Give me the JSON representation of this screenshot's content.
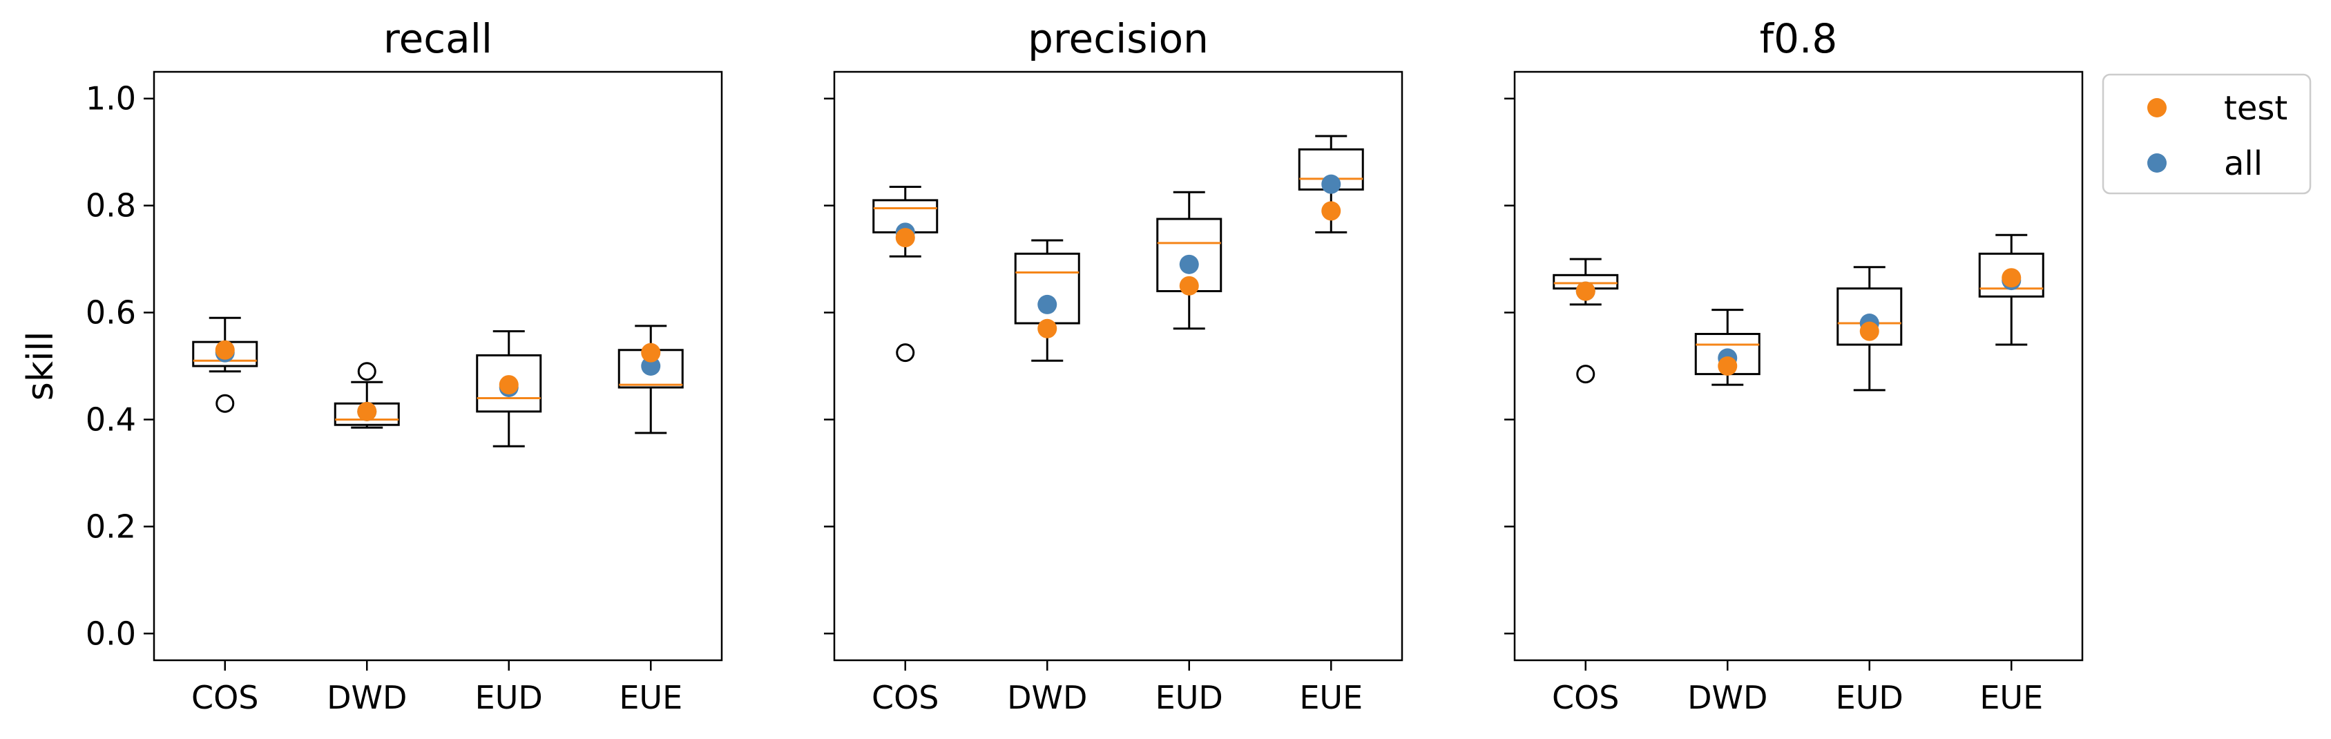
{
  "colors": {
    "test": "#f58518",
    "all": "#4a83b5",
    "median": "#f58518",
    "box": "#000000"
  },
  "chart_data": [
    {
      "type": "box",
      "title": "recall",
      "ylabel": "skill",
      "ylim": [
        -0.05,
        1.05
      ],
      "yticks": [
        "0.0",
        "0.2",
        "0.4",
        "0.6",
        "0.8",
        "1.0"
      ],
      "categories": [
        "COS",
        "DWD",
        "EUD",
        "EUE"
      ],
      "boxes": [
        {
          "whisker_low": 0.49,
          "q1": 0.5,
          "median": 0.51,
          "q3": 0.545,
          "whisker_high": 0.59,
          "fliers": [
            0.43
          ]
        },
        {
          "whisker_low": 0.385,
          "q1": 0.39,
          "median": 0.4,
          "q3": 0.43,
          "whisker_high": 0.47,
          "fliers": [
            0.49
          ]
        },
        {
          "whisker_low": 0.35,
          "q1": 0.415,
          "median": 0.44,
          "q3": 0.52,
          "whisker_high": 0.565,
          "fliers": []
        },
        {
          "whisker_low": 0.375,
          "q1": 0.46,
          "median": 0.465,
          "q3": 0.53,
          "whisker_high": 0.575,
          "fliers": []
        }
      ],
      "series": [
        {
          "name": "all",
          "values": [
            0.525,
            0.415,
            0.46,
            0.5
          ]
        },
        {
          "name": "test",
          "values": [
            0.53,
            0.415,
            0.465,
            0.525
          ]
        }
      ]
    },
    {
      "type": "box",
      "title": "precision",
      "ylim": [
        -0.05,
        1.05
      ],
      "categories": [
        "COS",
        "DWD",
        "EUD",
        "EUE"
      ],
      "boxes": [
        {
          "whisker_low": 0.705,
          "q1": 0.75,
          "median": 0.795,
          "q3": 0.81,
          "whisker_high": 0.835,
          "fliers": [
            0.525
          ]
        },
        {
          "whisker_low": 0.51,
          "q1": 0.58,
          "median": 0.675,
          "q3": 0.71,
          "whisker_high": 0.735,
          "fliers": []
        },
        {
          "whisker_low": 0.57,
          "q1": 0.64,
          "median": 0.73,
          "q3": 0.775,
          "whisker_high": 0.825,
          "fliers": []
        },
        {
          "whisker_low": 0.75,
          "q1": 0.83,
          "median": 0.85,
          "q3": 0.905,
          "whisker_high": 0.93,
          "fliers": []
        }
      ],
      "series": [
        {
          "name": "all",
          "values": [
            0.75,
            0.615,
            0.69,
            0.84
          ]
        },
        {
          "name": "test",
          "values": [
            0.74,
            0.57,
            0.65,
            0.79
          ]
        }
      ]
    },
    {
      "type": "box",
      "title": "f0.8",
      "ylim": [
        -0.05,
        1.05
      ],
      "categories": [
        "COS",
        "DWD",
        "EUD",
        "EUE"
      ],
      "boxes": [
        {
          "whisker_low": 0.615,
          "q1": 0.645,
          "median": 0.655,
          "q3": 0.67,
          "whisker_high": 0.7,
          "fliers": [
            0.485
          ]
        },
        {
          "whisker_low": 0.465,
          "q1": 0.485,
          "median": 0.54,
          "q3": 0.56,
          "whisker_high": 0.605,
          "fliers": []
        },
        {
          "whisker_low": 0.455,
          "q1": 0.54,
          "median": 0.58,
          "q3": 0.645,
          "whisker_high": 0.685,
          "fliers": []
        },
        {
          "whisker_low": 0.54,
          "q1": 0.63,
          "median": 0.645,
          "q3": 0.71,
          "whisker_high": 0.745,
          "fliers": []
        }
      ],
      "series": [
        {
          "name": "all",
          "values": [
            0.64,
            0.515,
            0.58,
            0.66
          ]
        },
        {
          "name": "test",
          "values": [
            0.64,
            0.5,
            0.565,
            0.665
          ]
        }
      ]
    }
  ],
  "legend": {
    "placement": "outside-right",
    "entries": [
      {
        "label": "test",
        "series": "test"
      },
      {
        "label": "all",
        "series": "all"
      }
    ]
  }
}
